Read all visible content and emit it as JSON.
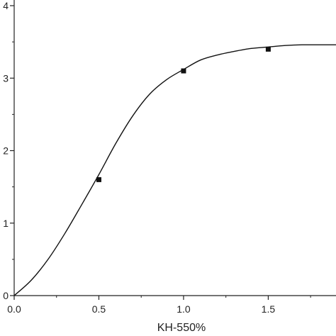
{
  "chart_data": {
    "type": "scatter",
    "title": "",
    "xlabel": "KH-550%",
    "ylabel": "",
    "xlim": [
      0,
      1.9
    ],
    "ylim": [
      0,
      4
    ],
    "x_ticks": [
      0.0,
      0.5,
      1.0,
      1.5
    ],
    "x_tick_labels": [
      "0.0",
      "0.5",
      "1.0",
      "1.5"
    ],
    "y_ticks": [
      0,
      1,
      2,
      3,
      4
    ],
    "y_tick_labels": [
      "0",
      "1",
      "2",
      "3",
      "4"
    ],
    "grid": false,
    "legend": "none",
    "series": [
      {
        "kind": "points",
        "marker": "square",
        "x": [
          0.5,
          1.0,
          1.5
        ],
        "y": [
          1.6,
          3.1,
          3.4
        ]
      },
      {
        "kind": "fit-line",
        "x": [
          0.0,
          0.1,
          0.2,
          0.3,
          0.4,
          0.5,
          0.6,
          0.7,
          0.8,
          0.9,
          1.0,
          1.1,
          1.2,
          1.3,
          1.4,
          1.5,
          1.6,
          1.7,
          1.8,
          1.9
        ],
        "y": [
          0.0,
          0.21,
          0.5,
          0.86,
          1.26,
          1.67,
          2.1,
          2.48,
          2.78,
          2.98,
          3.12,
          3.25,
          3.32,
          3.37,
          3.41,
          3.43,
          3.45,
          3.46,
          3.46,
          3.46
        ]
      }
    ],
    "colors": {
      "axis": "#222222",
      "line": "#111111",
      "marker": "#111111"
    }
  }
}
